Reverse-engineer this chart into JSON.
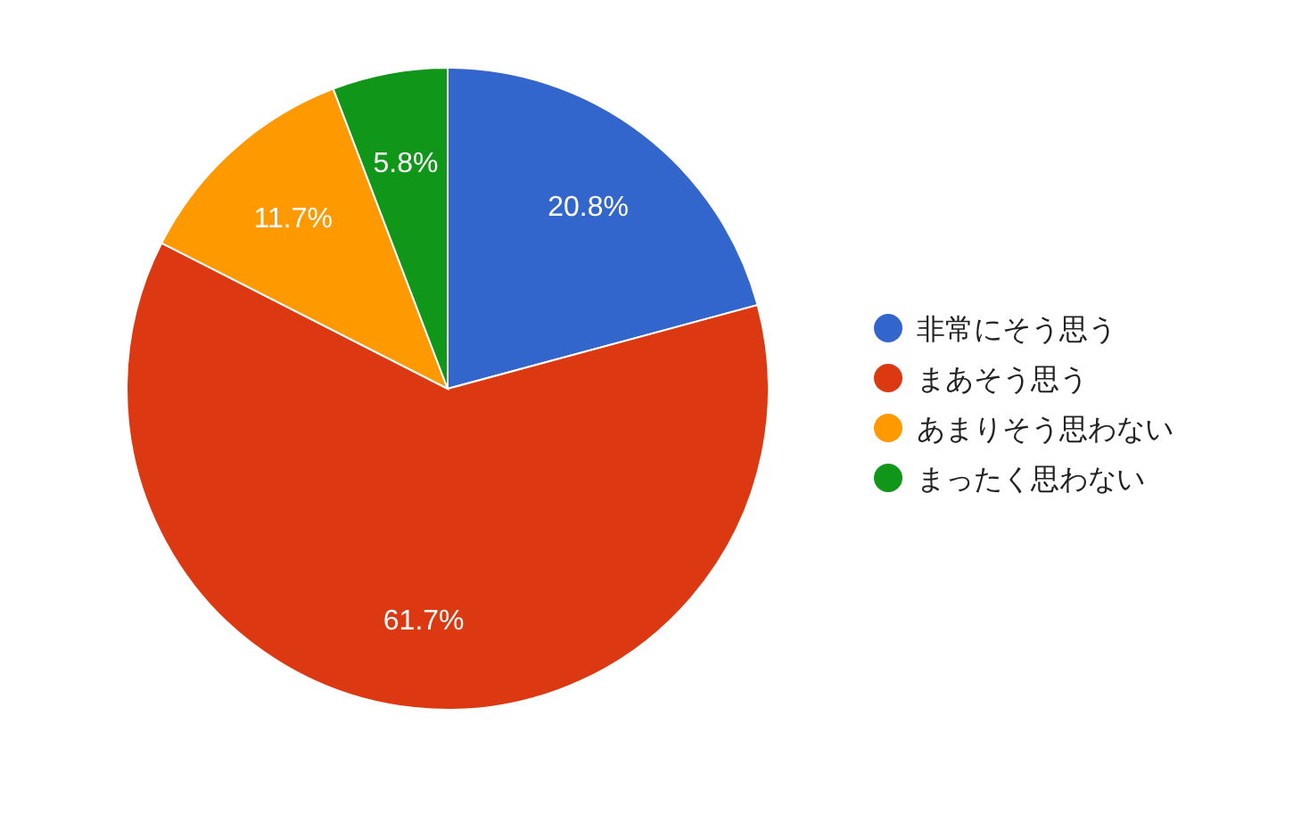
{
  "chart_data": {
    "type": "pie",
    "categories": [
      "非常にそう思う",
      "まあそう思う",
      "あまりそう思わない",
      "まったく思わない"
    ],
    "values": [
      20.8,
      61.7,
      11.7,
      5.8
    ],
    "colors": [
      "#3366cc",
      "#dc3912",
      "#ff9900",
      "#109618"
    ],
    "value_labels": [
      "20.8%",
      "61.7%",
      "11.7%",
      "5.8%"
    ],
    "legend": "right"
  }
}
